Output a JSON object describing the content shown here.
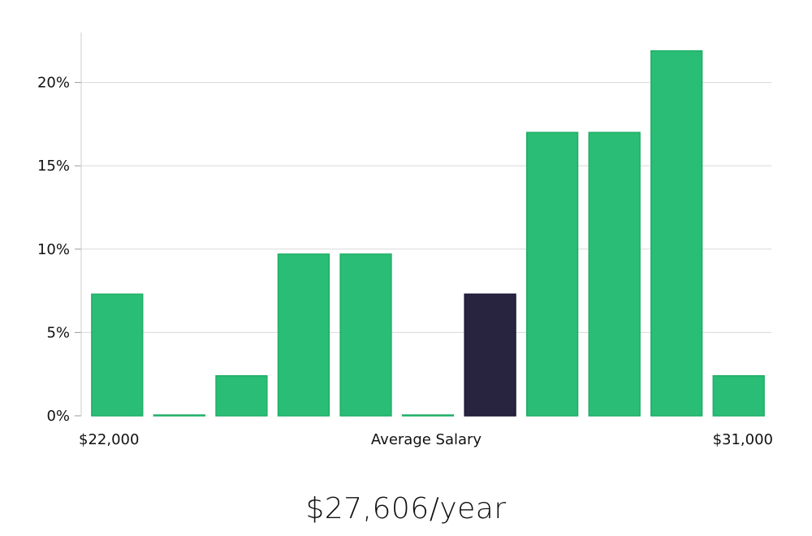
{
  "chart_data": {
    "type": "bar",
    "title": "",
    "xlabel": "Average Salary",
    "ylabel": "",
    "x_start_label": "$22,000",
    "x_end_label": "$31,000",
    "categories": [
      "$22,000",
      "",
      "",
      "",
      "",
      "",
      "",
      "",
      "",
      "",
      "$31,000"
    ],
    "values": [
      7.3,
      0.05,
      2.4,
      9.7,
      9.7,
      0.05,
      7.3,
      17.0,
      17.0,
      21.9,
      2.4
    ],
    "highlight_index": 6,
    "ylim": [
      0,
      23
    ],
    "yticks": [
      0,
      5,
      10,
      15,
      20
    ],
    "ytick_labels": [
      "0%",
      "5%",
      "10%",
      "15%",
      "20%"
    ],
    "grid": true,
    "colors": {
      "bar": "#2abd76",
      "bar_edge": "#1fae66",
      "highlight": "#28233f",
      "grid": "#d9d9d9",
      "axis": "#cccccc"
    }
  },
  "summary": {
    "salary_text": "$27,606/year"
  }
}
